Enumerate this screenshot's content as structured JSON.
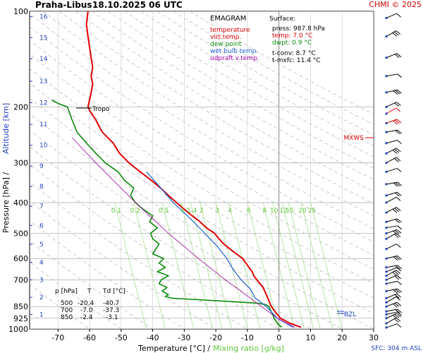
{
  "header": {
    "station": "Praha-Libus",
    "datetime": "18.10.2025 06 UTC",
    "copyright": "CHMI © 2025"
  },
  "legend": {
    "title": "EMAGRAM",
    "items": [
      {
        "label": "temperature",
        "color": "#e00000"
      },
      {
        "label": "virt.temp.",
        "color": "#e00000"
      },
      {
        "label": "dew point",
        "color": "#0a8a0a"
      },
      {
        "label": "wet bulb temp.",
        "color": "#1f5fd0"
      },
      {
        "label": "udpraft v.temp.",
        "color": "#a000a0"
      }
    ]
  },
  "surface": {
    "title": "Surface:",
    "press": "press: 987.8 hPa",
    "temp": "temp: 7.0 °C",
    "dwpt": "dwpt: 0.9 °C",
    "tconv": "t-conv: 8.7 °C",
    "tmxfc": "t-mxfc: 11.4 °C"
  },
  "table": {
    "headers": [
      "p [hPa]",
      "T",
      "Td [°C]"
    ],
    "rows": [
      [
        "500",
        "-20.4",
        "-40.7"
      ],
      [
        "700",
        "-7.0",
        "-37.3"
      ],
      [
        "850",
        "-2.4",
        "-3.1"
      ]
    ]
  },
  "labels": {
    "tropo": "Tropo",
    "mxws": "MXWS",
    "bzl": "BZL",
    "sfc": "SFC: 304 m ASL",
    "yaxis": "Pressure [hPa]  /",
    "yaxis_alt": "Altitude [km]",
    "xaxis": "Temperature [°C]  /",
    "xaxis_mix": "Mixing ratio [g/kg]"
  },
  "chart_data": {
    "type": "line",
    "x_ticks": [
      -70,
      -60,
      -50,
      -40,
      -30,
      -20,
      -10,
      0,
      10,
      20,
      30
    ],
    "x_range": [
      -79,
      30
    ],
    "y_scale": "log",
    "pressure_ticks": [
      100,
      200,
      300,
      400,
      500,
      600,
      700,
      850,
      925,
      1000
    ],
    "y_range": [
      100,
      1000
    ],
    "altitude_ticks": [
      "1",
      "2",
      "3",
      "4",
      "5",
      "6",
      "7",
      "8",
      "9",
      "10",
      "11",
      "12",
      "13",
      "14",
      "15",
      "16"
    ],
    "altitude_pressures": [
      900,
      795,
      700,
      617,
      541,
      472,
      411,
      356,
      307,
      264,
      227,
      194,
      166,
      141,
      121,
      104
    ],
    "mixing_ratio_labels": [
      "0.1",
      "0.2",
      "0.5",
      "1",
      "1.4",
      "2",
      "3",
      "4",
      "6",
      "8",
      "10",
      "12",
      "15",
      "20",
      "25"
    ],
    "mixing_ratio_temps_400hPa": [
      -52,
      -46,
      -37,
      -31,
      -28,
      -25,
      -20,
      -16,
      -10,
      -5,
      -2,
      1,
      3,
      7,
      10
    ],
    "series": [
      {
        "name": "temperature",
        "color": "#e00000",
        "p": [
          988,
          960,
          925,
          900,
          875,
          850,
          825,
          800,
          780,
          760,
          740,
          720,
          700,
          680,
          660,
          640,
          620,
          600,
          580,
          560,
          540,
          520,
          500,
          480,
          460,
          440,
          420,
          400,
          380,
          360,
          340,
          320,
          300,
          280,
          260,
          240,
          220,
          205,
          200,
          190,
          180,
          170,
          160,
          150,
          140,
          130,
          120,
          110,
          100
        ],
        "t": [
          7.0,
          3.5,
          0.5,
          -0.5,
          -1.5,
          -2.4,
          -3.0,
          -3.5,
          -4.0,
          -4.5,
          -5.0,
          -6.0,
          -7.0,
          -8.0,
          -8.5,
          -9.5,
          -10.5,
          -11.5,
          -13.5,
          -15.5,
          -17.5,
          -19.0,
          -20.4,
          -23.0,
          -25.0,
          -27.5,
          -30.0,
          -32.5,
          -35.0,
          -37.5,
          -40.5,
          -44.0,
          -47.5,
          -50.5,
          -52.5,
          -56.0,
          -58.0,
          -60.0,
          -60.5,
          -60.0,
          -59.5,
          -59.0,
          -59.5,
          -59.0,
          -59.5,
          -60.0,
          -60.5,
          -61.0,
          -60.5
        ]
      },
      {
        "name": "dew point",
        "color": "#0a8a0a",
        "p": [
          988,
          960,
          925,
          900,
          880,
          860,
          850,
          840,
          830,
          820,
          800,
          790,
          780,
          760,
          740,
          720,
          700,
          680,
          660,
          640,
          620,
          600,
          580,
          560,
          540,
          520,
          500,
          480,
          460,
          440,
          420,
          400,
          380,
          360,
          340,
          320,
          300,
          280,
          260,
          240,
          220,
          200,
          195,
          190
        ],
        "t": [
          0.9,
          -0.5,
          -1.5,
          -2.0,
          -2.5,
          -3.0,
          -3.1,
          -4.0,
          -6.5,
          -15.0,
          -34.0,
          -36.0,
          -35.0,
          -37.0,
          -35.5,
          -38.0,
          -37.3,
          -35.0,
          -38.5,
          -36.0,
          -38.0,
          -36.5,
          -40.0,
          -39.0,
          -38.0,
          -40.0,
          -40.7,
          -38.5,
          -41.0,
          -40.0,
          -43.0,
          -45.5,
          -47.0,
          -46.0,
          -49.0,
          -51.0,
          -55.0,
          -58.0,
          -61.0,
          -64.0,
          -65.5,
          -67.0,
          -70.0,
          -72.0
        ]
      },
      {
        "name": "wet bulb temp.",
        "color": "#1f5fd0",
        "p": [
          988,
          925,
          850,
          800,
          750,
          700,
          650,
          600,
          550,
          500,
          450,
          400,
          350,
          320
        ],
        "t": [
          4.5,
          -0.5,
          -4.0,
          -7.5,
          -9.0,
          -12.0,
          -14.5,
          -16.5,
          -19.5,
          -23.5,
          -28.0,
          -33.5,
          -38.5,
          -42.0
        ]
      },
      {
        "name": "udpraft v.temp.",
        "color": "#a000a0",
        "p": [
          988,
          925,
          850,
          800,
          700,
          600,
          500,
          400,
          300,
          250
        ],
        "t": [
          5.0,
          -0.5,
          -5.5,
          -9.0,
          -17.0,
          -25.5,
          -35.0,
          -45.5,
          -58.0,
          -65.5
        ]
      }
    ],
    "wind_barbs_pressures": [
      990,
      960,
      925,
      900,
      880,
      850,
      825,
      800,
      760,
      720,
      700,
      680,
      660,
      640,
      600,
      560,
      520,
      500,
      480,
      460,
      430,
      400,
      380,
      350,
      320,
      300,
      280,
      260,
      240,
      225,
      210,
      200,
      180,
      160,
      140,
      120,
      105
    ]
  }
}
